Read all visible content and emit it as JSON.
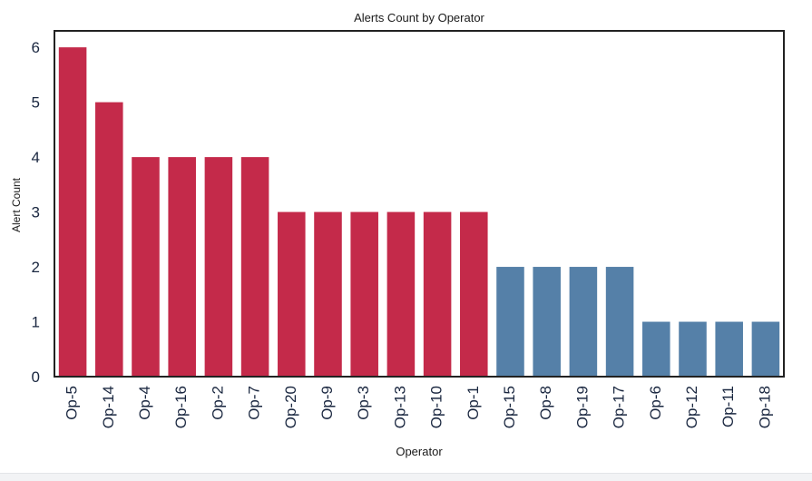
{
  "chart_data": {
    "type": "bar",
    "title": "Alerts Count by Operator",
    "xlabel": "Operator",
    "ylabel": "Alert Count",
    "categories": [
      "Op-5",
      "Op-14",
      "Op-4",
      "Op-16",
      "Op-2",
      "Op-7",
      "Op-20",
      "Op-9",
      "Op-3",
      "Op-13",
      "Op-10",
      "Op-1",
      "Op-15",
      "Op-8",
      "Op-19",
      "Op-17",
      "Op-6",
      "Op-12",
      "Op-11",
      "Op-18"
    ],
    "values": [
      6,
      5,
      4,
      4,
      4,
      4,
      3,
      3,
      3,
      3,
      3,
      3,
      2,
      2,
      2,
      2,
      1,
      1,
      1,
      1
    ],
    "ylim": [
      0,
      6.3
    ],
    "yticks": [
      0,
      1,
      2,
      3,
      4,
      5,
      6
    ],
    "grid": false,
    "legend": "none",
    "bar_colors": {
      "high": "#c42a4a",
      "low": "#5580a8",
      "threshold": 3
    },
    "text_color": "#1a2740",
    "axis_color": "#222222"
  }
}
